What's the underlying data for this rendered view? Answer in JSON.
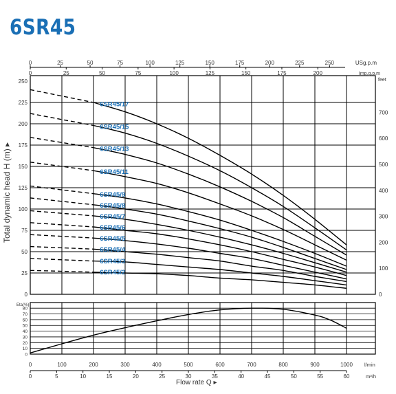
{
  "title": "6SR45",
  "colors": {
    "title": "#1a6fb5",
    "curve_label": "#1a6fb5",
    "curve": "#000000",
    "grid": "#000000",
    "text": "#333333"
  },
  "chart_data": [
    {
      "type": "line",
      "title": "6SR45",
      "ylabel": "Total dynamic head H (m)",
      "right_axis": {
        "unit": "feet",
        "ticks": [
          0,
          100,
          200,
          300,
          400,
          500,
          600,
          700
        ]
      },
      "top_axes": [
        {
          "unit": "USg.p.m",
          "ticks": [
            0,
            25,
            50,
            75,
            100,
            125,
            150,
            175,
            200,
            225,
            250
          ]
        },
        {
          "unit": "Imp.g.p.m",
          "ticks": [
            0,
            25,
            50,
            75,
            100,
            125,
            150,
            175,
            200
          ]
        }
      ],
      "xlim": [
        0,
        1000
      ],
      "ylim": [
        0,
        250
      ],
      "yticks": [
        0,
        25,
        50,
        75,
        100,
        125,
        150,
        175,
        200,
        225,
        250
      ],
      "grid": true,
      "x_dashed_until": 200,
      "series": [
        {
          "name": "6SR45/17",
          "x": [
            0,
            200,
            300,
            400,
            500,
            600,
            700,
            800,
            900,
            1000
          ],
          "y": [
            240,
            225,
            214,
            200,
            183,
            163,
            141,
            116,
            88,
            58
          ]
        },
        {
          "name": "6SR45/15",
          "x": [
            0,
            200,
            300,
            400,
            500,
            600,
            700,
            800,
            900,
            1000
          ],
          "y": [
            212,
            198,
            189,
            177,
            162,
            145,
            125,
            103,
            78,
            52
          ]
        },
        {
          "name": "6SR45/13",
          "x": [
            0,
            200,
            300,
            400,
            500,
            600,
            700,
            800,
            900,
            1000
          ],
          "y": [
            184,
            172,
            164,
            154,
            141,
            126,
            109,
            90,
            68,
            46
          ]
        },
        {
          "name": "6SR45/11",
          "x": [
            0,
            200,
            300,
            400,
            500,
            600,
            700,
            800,
            900,
            1000
          ],
          "y": [
            155,
            145,
            138,
            130,
            119,
            106,
            92,
            76,
            58,
            40
          ]
        },
        {
          "name": "6SR45/9",
          "x": [
            0,
            200,
            300,
            400,
            500,
            600,
            700,
            800,
            900,
            1000
          ],
          "y": [
            127,
            118,
            113,
            106,
            97,
            87,
            75,
            62,
            48,
            33
          ]
        },
        {
          "name": "6SR45/8",
          "x": [
            0,
            200,
            300,
            400,
            500,
            600,
            700,
            800,
            900,
            1000
          ],
          "y": [
            113,
            105,
            100,
            94,
            86,
            77,
            67,
            55,
            42,
            29
          ]
        },
        {
          "name": "6SR45/7",
          "x": [
            0,
            200,
            300,
            400,
            500,
            600,
            700,
            800,
            900,
            1000
          ],
          "y": [
            98,
            92,
            88,
            82,
            75,
            67,
            58,
            48,
            37,
            26
          ]
        },
        {
          "name": "6SR45/6",
          "x": [
            0,
            200,
            300,
            400,
            500,
            600,
            700,
            800,
            900,
            1000
          ],
          "y": [
            84,
            79,
            75,
            71,
            65,
            58,
            50,
            41,
            32,
            22
          ]
        },
        {
          "name": "6SR45/5",
          "x": [
            0,
            200,
            300,
            400,
            500,
            600,
            700,
            800,
            900,
            1000
          ],
          "y": [
            70,
            66,
            63,
            59,
            54,
            48,
            42,
            34,
            26,
            18
          ]
        },
        {
          "name": "6SR45/4",
          "x": [
            0,
            200,
            300,
            400,
            500,
            600,
            700,
            800,
            900,
            1000
          ],
          "y": [
            56,
            53,
            50,
            47,
            43,
            39,
            33,
            28,
            21,
            15
          ]
        },
        {
          "name": "6SR45/3",
          "x": [
            0,
            200,
            300,
            400,
            500,
            600,
            700,
            800,
            900,
            1000
          ],
          "y": [
            42,
            39,
            38,
            35,
            32,
            29,
            25,
            21,
            16,
            11
          ]
        },
        {
          "name": "6SR45/2",
          "x": [
            0,
            200,
            300,
            400,
            500,
            600,
            700,
            800,
            900,
            1000
          ],
          "y": [
            28,
            26,
            25,
            24,
            22,
            19,
            17,
            14,
            11,
            7
          ]
        }
      ]
    },
    {
      "type": "line",
      "ylabel": "Eta(%)",
      "xlabel": "Flow rate Q",
      "bottom_axes": [
        {
          "unit": "l/min",
          "ticks": [
            0,
            100,
            200,
            300,
            400,
            500,
            600,
            700,
            800,
            900,
            1000
          ]
        },
        {
          "unit": "m³/h",
          "ticks": [
            0,
            5,
            10,
            15,
            20,
            25,
            30,
            35,
            40,
            45,
            50,
            55,
            60
          ]
        }
      ],
      "xlim": [
        0,
        1000
      ],
      "ylim": [
        0,
        85
      ],
      "yticks": [
        0,
        10,
        20,
        30,
        40,
        50,
        60,
        70,
        80
      ],
      "grid": true,
      "series": [
        {
          "x": [
            0,
            100,
            200,
            300,
            400,
            500,
            600,
            700,
            800,
            900,
            950,
            1000
          ],
          "y": [
            2,
            18,
            33,
            46,
            58,
            69,
            77,
            80,
            78,
            68,
            59,
            45
          ]
        }
      ]
    }
  ]
}
